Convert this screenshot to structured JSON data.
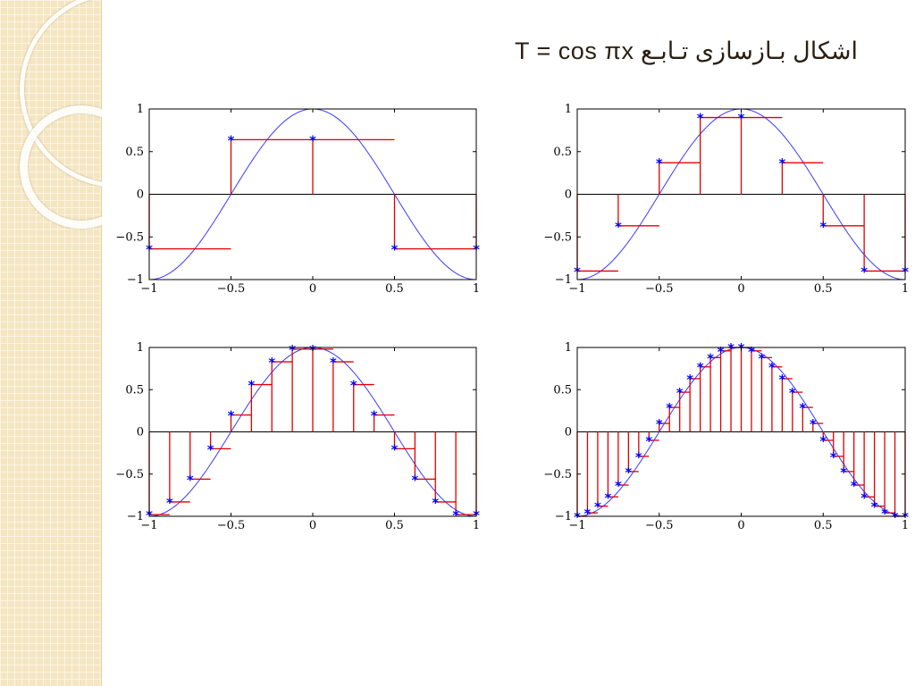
{
  "slide": {
    "title": "اشکال بـازسازی تـابـع   T = cos πx"
  },
  "colors": {
    "curve": "#3a3aff",
    "stair": "#e00000",
    "marker": "#0000ff",
    "axis": "#000000"
  },
  "chart_data": [
    {
      "type": "line",
      "function": "cos(pi*x)",
      "xlim": [
        -1,
        1
      ],
      "ylim": [
        -1,
        1
      ],
      "xticks": [
        "−1",
        "−0.5",
        "0",
        "0.5",
        "1"
      ],
      "yticks": [
        "−1",
        "−0.5",
        "0",
        "0.5",
        "1"
      ],
      "sample_x": [
        -1,
        -0.5,
        0,
        0.5,
        1
      ],
      "sample_values": [
        -0.64,
        0.64,
        0.64,
        -0.64,
        -0.64
      ]
    },
    {
      "type": "line",
      "function": "cos(pi*x)",
      "xlim": [
        -1,
        1
      ],
      "ylim": [
        -1,
        1
      ],
      "xticks": [
        "−1",
        "−0.5",
        "0",
        "0.5",
        "1"
      ],
      "yticks": [
        "−1",
        "−0.5",
        "0",
        "0.5",
        "1"
      ],
      "sample_x": [
        -1,
        -0.75,
        -0.5,
        -0.25,
        0,
        0.25,
        0.5,
        0.75,
        1
      ],
      "sample_values": [
        -0.9,
        -0.37,
        0.37,
        0.9,
        0.9,
        0.37,
        -0.37,
        -0.9,
        -0.9
      ]
    },
    {
      "type": "line",
      "function": "cos(pi*x)",
      "xlim": [
        -1,
        1
      ],
      "ylim": [
        -1,
        1
      ],
      "xticks": [
        "−1",
        "−0.5",
        "0",
        "0.5",
        "1"
      ],
      "yticks": [
        "−1",
        "−0.5",
        "0",
        "0.5",
        "1"
      ],
      "sample_x": [
        -1,
        -0.875,
        -0.75,
        -0.625,
        -0.5,
        -0.375,
        -0.25,
        -0.125,
        0,
        0.125,
        0.25,
        0.375,
        0.5,
        0.625,
        0.75,
        0.875,
        1
      ],
      "sample_values": [
        -0.98,
        -0.83,
        -0.56,
        -0.2,
        0.2,
        0.56,
        0.83,
        0.98,
        0.98,
        0.83,
        0.56,
        0.2,
        -0.2,
        -0.56,
        -0.83,
        -0.98,
        -0.98
      ]
    },
    {
      "type": "line",
      "function": "cos(pi*x)",
      "xlim": [
        -1,
        1
      ],
      "ylim": [
        -1,
        1
      ],
      "xticks": [
        "−1",
        "−0.5",
        "0",
        "0.5",
        "1"
      ],
      "yticks": [
        "−1",
        "−0.5",
        "0",
        "0.5",
        "1"
      ],
      "sample_x": [
        -1,
        -0.9375,
        -0.875,
        -0.8125,
        -0.75,
        -0.6875,
        -0.625,
        -0.5625,
        -0.5,
        -0.4375,
        -0.375,
        -0.3125,
        -0.25,
        -0.1875,
        -0.125,
        -0.0625,
        0,
        0.0625,
        0.125,
        0.1875,
        0.25,
        0.3125,
        0.375,
        0.4375,
        0.5,
        0.5625,
        0.625,
        0.6875,
        0.75,
        0.8125,
        0.875,
        0.9375,
        1
      ],
      "sample_values": [
        -1.0,
        -0.96,
        -0.88,
        -0.77,
        -0.63,
        -0.47,
        -0.29,
        -0.1,
        0.1,
        0.29,
        0.47,
        0.63,
        0.77,
        0.88,
        0.96,
        1.0,
        1.0,
        0.96,
        0.88,
        0.77,
        0.63,
        0.47,
        0.29,
        0.1,
        -0.1,
        -0.29,
        -0.47,
        -0.63,
        -0.77,
        -0.88,
        -0.96,
        -1.0,
        -1.0
      ]
    }
  ]
}
